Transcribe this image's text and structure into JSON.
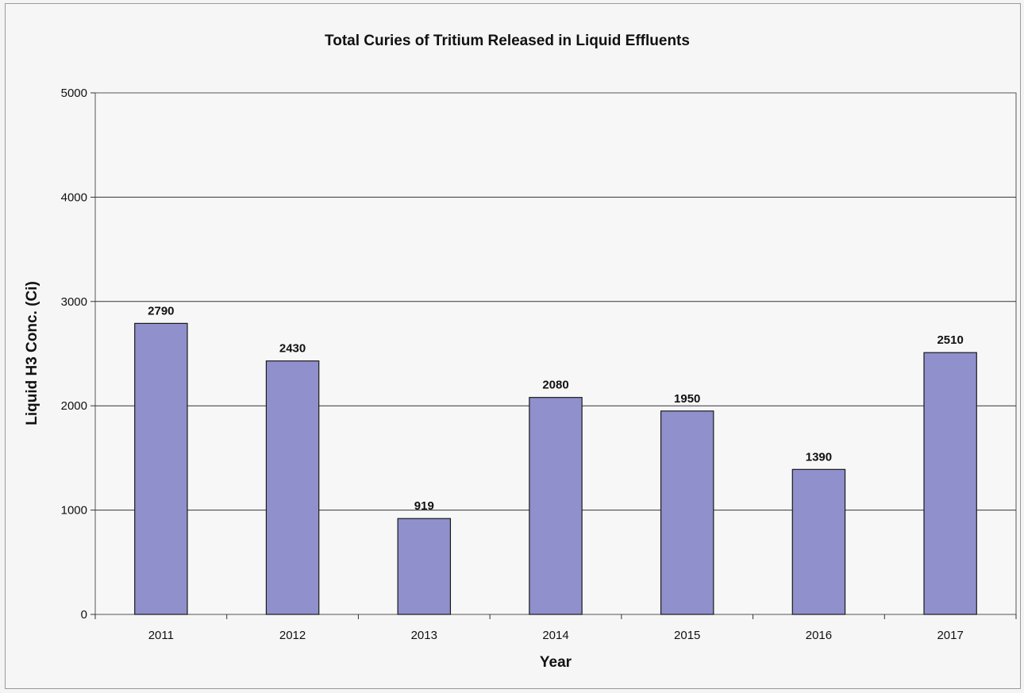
{
  "chart_data": {
    "type": "bar",
    "title": "Total Curies of Tritium Released in Liquid Effluents",
    "xlabel": "Year",
    "ylabel": "Liquid H3 Conc. (Ci)",
    "categories": [
      "2011",
      "2012",
      "2013",
      "2014",
      "2015",
      "2016",
      "2017"
    ],
    "values": [
      2790,
      2430,
      919,
      2080,
      1950,
      1390,
      2510
    ],
    "data_labels": [
      "2790",
      "2430",
      "919",
      "2080",
      "1950",
      "1390",
      "2510"
    ],
    "ylim": [
      0,
      5000
    ],
    "yticks": [
      0,
      1000,
      2000,
      3000,
      4000,
      5000
    ],
    "ytick_labels": [
      "0",
      "1000",
      "2000",
      "3000",
      "4000",
      "5000"
    ],
    "grid": true,
    "legend": "none",
    "colors": {
      "bar": "#8f90cc",
      "plot_background": "#f7f7f7",
      "page_background": "#f4f4f4"
    }
  }
}
